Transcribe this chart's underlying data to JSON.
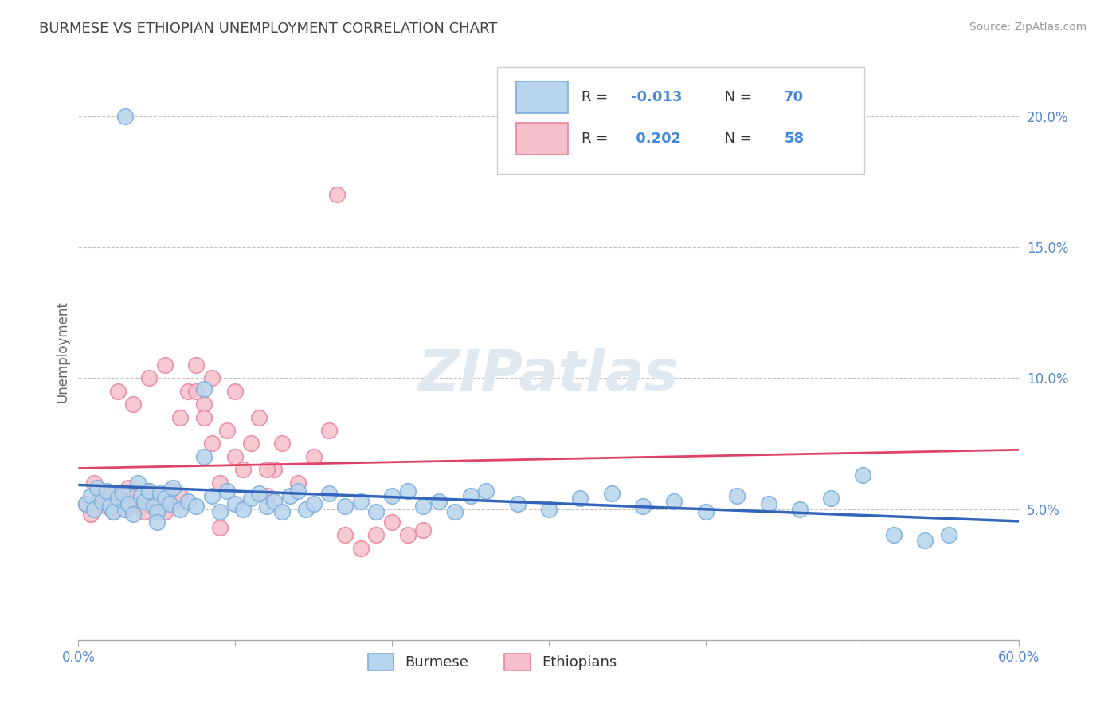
{
  "title": "BURMESE VS ETHIOPIAN UNEMPLOYMENT CORRELATION CHART",
  "source_text": "Source: ZipAtlas.com",
  "ylabel": "Unemployment",
  "xlim": [
    0.0,
    0.6
  ],
  "ylim": [
    0.0,
    0.22
  ],
  "xticks": [
    0.0,
    0.1,
    0.2,
    0.3,
    0.4,
    0.5,
    0.6
  ],
  "xticklabels": [
    "0.0%",
    "",
    "",
    "",
    "",
    "",
    "60.0%"
  ],
  "yticks": [
    0.05,
    0.1,
    0.15,
    0.2
  ],
  "yticklabels": [
    "5.0%",
    "10.0%",
    "15.0%",
    "20.0%"
  ],
  "burmese_color": "#7aaedc",
  "burmese_face": "#b8d4ec",
  "ethiopian_color": "#e8849a",
  "ethiopian_face": "#f5c0cc",
  "burmese_R": -0.013,
  "burmese_N": 70,
  "ethiopian_R": 0.202,
  "ethiopian_N": 58,
  "burmese_trend_color": "#3366bb",
  "ethiopian_trend_color": "#dd4466",
  "grid_color": "#bbbbbb",
  "background_color": "#ffffff",
  "title_color": "#444444",
  "tick_color": "#5588cc",
  "watermark": "ZIPatlas",
  "burmese_x": [
    0.005,
    0.008,
    0.01,
    0.012,
    0.015,
    0.018,
    0.02,
    0.022,
    0.025,
    0.028,
    0.03,
    0.032,
    0.035,
    0.038,
    0.04,
    0.042,
    0.045,
    0.048,
    0.05,
    0.052,
    0.055,
    0.058,
    0.06,
    0.065,
    0.07,
    0.075,
    0.08,
    0.085,
    0.09,
    0.095,
    0.1,
    0.105,
    0.11,
    0.115,
    0.12,
    0.125,
    0.13,
    0.135,
    0.14,
    0.145,
    0.15,
    0.16,
    0.17,
    0.18,
    0.19,
    0.2,
    0.21,
    0.22,
    0.23,
    0.24,
    0.25,
    0.26,
    0.28,
    0.3,
    0.32,
    0.34,
    0.36,
    0.38,
    0.4,
    0.42,
    0.44,
    0.46,
    0.48,
    0.5,
    0.52,
    0.54,
    0.555,
    0.03,
    0.05,
    0.08
  ],
  "burmese_y": [
    0.052,
    0.055,
    0.05,
    0.058,
    0.053,
    0.057,
    0.051,
    0.049,
    0.054,
    0.056,
    0.05,
    0.052,
    0.048,
    0.06,
    0.055,
    0.053,
    0.057,
    0.051,
    0.049,
    0.056,
    0.054,
    0.052,
    0.058,
    0.05,
    0.053,
    0.051,
    0.096,
    0.055,
    0.049,
    0.057,
    0.052,
    0.05,
    0.054,
    0.056,
    0.051,
    0.053,
    0.049,
    0.055,
    0.057,
    0.05,
    0.052,
    0.056,
    0.051,
    0.053,
    0.049,
    0.055,
    0.057,
    0.051,
    0.053,
    0.049,
    0.055,
    0.057,
    0.052,
    0.05,
    0.054,
    0.056,
    0.051,
    0.053,
    0.049,
    0.055,
    0.052,
    0.05,
    0.054,
    0.063,
    0.04,
    0.038,
    0.04,
    0.2,
    0.045,
    0.07
  ],
  "ethiopian_x": [
    0.005,
    0.008,
    0.01,
    0.012,
    0.015,
    0.018,
    0.02,
    0.022,
    0.025,
    0.028,
    0.03,
    0.032,
    0.035,
    0.038,
    0.04,
    0.042,
    0.045,
    0.048,
    0.05,
    0.052,
    0.055,
    0.058,
    0.06,
    0.065,
    0.07,
    0.075,
    0.08,
    0.085,
    0.09,
    0.095,
    0.1,
    0.105,
    0.11,
    0.115,
    0.12,
    0.125,
    0.13,
    0.14,
    0.15,
    0.16,
    0.17,
    0.18,
    0.19,
    0.2,
    0.21,
    0.22,
    0.08,
    0.1,
    0.12,
    0.025,
    0.035,
    0.045,
    0.055,
    0.065,
    0.075,
    0.085,
    0.165,
    0.09
  ],
  "ethiopian_y": [
    0.052,
    0.048,
    0.06,
    0.053,
    0.057,
    0.051,
    0.056,
    0.049,
    0.055,
    0.053,
    0.05,
    0.058,
    0.054,
    0.056,
    0.051,
    0.049,
    0.057,
    0.053,
    0.055,
    0.051,
    0.049,
    0.057,
    0.053,
    0.055,
    0.095,
    0.105,
    0.09,
    0.1,
    0.06,
    0.08,
    0.07,
    0.065,
    0.075,
    0.085,
    0.055,
    0.065,
    0.075,
    0.06,
    0.07,
    0.08,
    0.04,
    0.035,
    0.04,
    0.045,
    0.04,
    0.042,
    0.085,
    0.095,
    0.065,
    0.095,
    0.09,
    0.1,
    0.105,
    0.085,
    0.095,
    0.075,
    0.17,
    0.043
  ]
}
